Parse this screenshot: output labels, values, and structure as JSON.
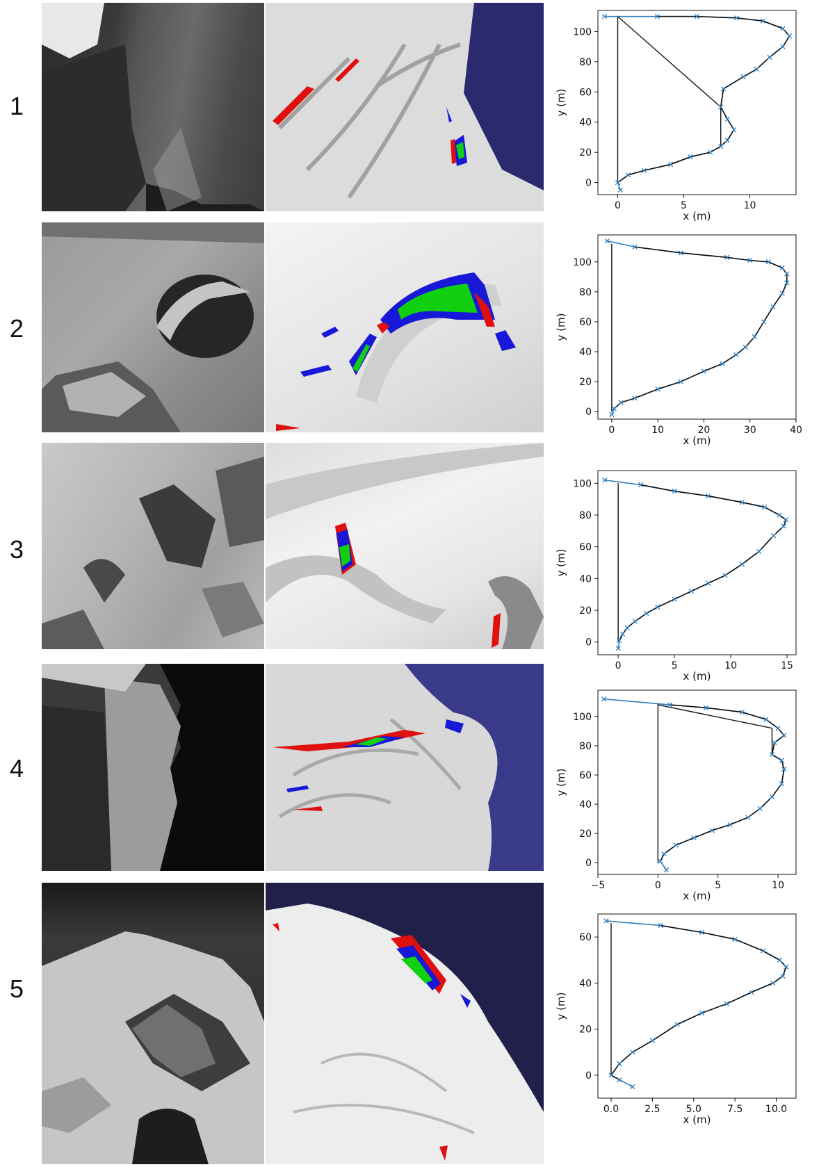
{
  "rows": [
    {
      "label": "1"
    },
    {
      "label": "2"
    },
    {
      "label": "3"
    },
    {
      "label": "4"
    },
    {
      "label": "5"
    }
  ],
  "colors": {
    "profile": "#111111",
    "markers": "#2f7fbf",
    "model_red": "#e01010",
    "model_blue": "#1818d8",
    "model_green": "#10d010",
    "sky": "#2b2a6e"
  },
  "chart_data": [
    {
      "type": "line",
      "xlabel": "x (m)",
      "ylabel": "y (m)",
      "xlim": [
        -1.5,
        13.5
      ],
      "ylim": [
        -8,
        114
      ],
      "xticks": [
        0,
        5,
        10
      ],
      "yticks": [
        0,
        20,
        40,
        60,
        80,
        100
      ],
      "series": [
        {
          "x": [
            0.2,
            0,
            0.8,
            2,
            4,
            5.5,
            7,
            7.8,
            8.3,
            8.8,
            8.3,
            7.8,
            8,
            9.5,
            10.5,
            11.5,
            12.5,
            13,
            12.5,
            11,
            9,
            6,
            3,
            -1
          ],
          "y": [
            -5,
            0,
            5,
            8,
            12,
            17,
            20,
            24,
            28,
            35,
            42,
            50,
            62,
            70,
            75,
            83,
            90,
            97,
            102,
            107,
            109,
            110,
            110,
            110
          ]
        }
      ],
      "baseline": {
        "x": [
          0,
          0,
          7.8,
          7.8
        ],
        "y": [
          0,
          110,
          50,
          24
        ]
      }
    },
    {
      "type": "line",
      "xlabel": "x (m)",
      "ylabel": "y (m)",
      "xlim": [
        -3,
        40
      ],
      "ylim": [
        -5,
        118
      ],
      "xticks": [
        0,
        10,
        20,
        30,
        40
      ],
      "yticks": [
        0,
        20,
        40,
        60,
        80,
        100
      ],
      "series": [
        {
          "x": [
            0,
            0.5,
            2,
            5,
            10,
            15,
            20,
            24,
            27,
            29,
            31,
            33,
            35,
            37,
            38,
            38,
            37,
            34,
            30,
            25,
            15,
            5,
            -1
          ],
          "y": [
            -2,
            2,
            6,
            9,
            15,
            20,
            27,
            32,
            38,
            43,
            50,
            60,
            70,
            79,
            86,
            92,
            96,
            100,
            101,
            103,
            106,
            110,
            114
          ]
        }
      ],
      "baseline": {
        "x": [
          0,
          0
        ],
        "y": [
          0,
          112
        ]
      }
    },
    {
      "type": "line",
      "xlabel": "x (m)",
      "ylabel": "y (m)",
      "xlim": [
        -1.8,
        15.8
      ],
      "ylim": [
        -8,
        108
      ],
      "xticks": [
        0,
        5,
        10,
        15
      ],
      "yticks": [
        0,
        20,
        40,
        60,
        80,
        100
      ],
      "series": [
        {
          "x": [
            0,
            0.1,
            0.4,
            0.8,
            1.5,
            2.5,
            3.5,
            5,
            6.5,
            8,
            9.5,
            11,
            12.5,
            13.8,
            14.7,
            14.9,
            14.3,
            13,
            11,
            8,
            5,
            2,
            -1.2
          ],
          "y": [
            -4,
            1,
            5,
            9,
            13,
            18,
            22,
            27,
            32,
            37,
            42,
            49,
            57,
            67,
            73,
            77,
            80,
            85,
            88,
            92,
            95,
            99,
            102
          ]
        }
      ],
      "baseline": {
        "x": [
          0,
          0
        ],
        "y": [
          0,
          100
        ]
      }
    },
    {
      "type": "line",
      "xlabel": "x (m)",
      "ylabel": "y (m)",
      "xlim": [
        -5,
        11.5
      ],
      "ylim": [
        -8,
        118
      ],
      "xticks": [
        -5,
        0,
        5,
        10
      ],
      "yticks": [
        0,
        20,
        40,
        60,
        80,
        100
      ],
      "series": [
        {
          "x": [
            0.7,
            0.2,
            0.5,
            1.5,
            3,
            4.5,
            6,
            7.5,
            8.5,
            9.5,
            10.3,
            10.5,
            10.3,
            9.5,
            9.7,
            10.5,
            10,
            9,
            7,
            4,
            1,
            -4.5
          ],
          "y": [
            -5,
            1,
            6,
            12,
            17,
            22,
            26,
            31,
            37,
            45,
            54,
            64,
            70,
            74,
            82,
            87,
            92,
            98,
            103,
            106,
            108,
            112
          ]
        }
      ],
      "baseline": {
        "x": [
          0,
          0,
          9.5,
          9.5
        ],
        "y": [
          0,
          108,
          92,
          74
        ]
      }
    },
    {
      "type": "line",
      "xlabel": "x (m)",
      "ylabel": "y (m)",
      "xlim": [
        -0.8,
        11.2
      ],
      "ylim": [
        -10,
        70
      ],
      "xticks": [
        0,
        2.5,
        5,
        7.5,
        10
      ],
      "xticklabels": [
        "0.0",
        "2.5",
        "5.0",
        "7.5",
        "10.0"
      ],
      "yticks": [
        0,
        20,
        40,
        60
      ],
      "series": [
        {
          "x": [
            1.3,
            0.5,
            0,
            0.5,
            1.3,
            2.5,
            4,
            5.5,
            7,
            8.5,
            9.8,
            10.4,
            10.6,
            10.2,
            9.2,
            7.5,
            5.5,
            3,
            -0.3
          ],
          "y": [
            -5,
            -2,
            0,
            5,
            10,
            15,
            22,
            27,
            31,
            36,
            40,
            43,
            47,
            50,
            54,
            59,
            62,
            65,
            67
          ]
        }
      ],
      "baseline": {
        "x": [
          0,
          0
        ],
        "y": [
          0,
          66
        ]
      }
    }
  ]
}
